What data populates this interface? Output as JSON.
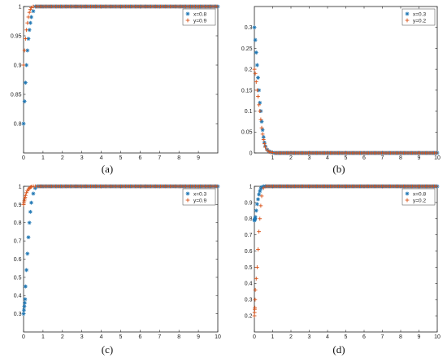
{
  "figure": {
    "captions": [
      "(a)",
      "(b)",
      "(c)",
      "(d)"
    ]
  },
  "colors": {
    "blue": "#1f77b4",
    "orange": "#d95319",
    "axis": "#222222"
  },
  "markers": {
    "blue": "asterisk",
    "orange": "plus"
  },
  "chart_data": [
    {
      "type": "scatter",
      "caption": "(a)",
      "xlim": [
        0,
        10
      ],
      "ylim": [
        0.75,
        1.0
      ],
      "xticks": [
        0,
        1,
        2,
        3,
        4,
        5,
        6,
        7,
        8,
        9
      ],
      "yticks": [
        0.8,
        0.85,
        0.9,
        0.95,
        1
      ],
      "ytick_labels": [
        "0.8",
        "0.85",
        "0.9",
        "0.95",
        "1"
      ],
      "grid": false,
      "legend_position": "top-right",
      "x": [
        0,
        0.05,
        0.1,
        0.15,
        0.2,
        0.25,
        0.3,
        0.35,
        0.4,
        0.5
      ],
      "series": [
        {
          "name": "x=0.8",
          "color": "blue",
          "marker": "asterisk",
          "values": [
            0.8,
            0.838,
            0.87,
            0.9,
            0.925,
            0.945,
            0.96,
            0.972,
            0.982,
            0.992
          ],
          "plateau": 1.0
        },
        {
          "name": "y=0.9",
          "color": "orange",
          "marker": "plus",
          "values": [
            0.9,
            0.925,
            0.945,
            0.96,
            0.972,
            0.982,
            0.99,
            0.995,
            0.998,
            1.0
          ],
          "plateau": 1.0
        }
      ]
    },
    {
      "type": "scatter",
      "caption": "(b)",
      "xlim": [
        0,
        10
      ],
      "ylim": [
        0,
        0.35
      ],
      "xticks": [
        1,
        2,
        3,
        4,
        5,
        6,
        7,
        8,
        9,
        10
      ],
      "yticks": [
        0,
        0.05,
        0.1,
        0.15,
        0.2,
        0.25,
        0.3
      ],
      "ytick_labels": [
        "0",
        "0.05",
        "0.1",
        "0.15",
        "0.2",
        "0.25",
        "0.3"
      ],
      "grid": false,
      "legend_position": "top-right",
      "x": [
        0,
        0.05,
        0.1,
        0.15,
        0.2,
        0.25,
        0.3,
        0.35,
        0.4,
        0.45,
        0.5,
        0.55,
        0.6,
        0.7,
        0.8,
        0.9,
        1.0
      ],
      "series": [
        {
          "name": "x=0.3",
          "color": "blue",
          "marker": "asterisk",
          "values": [
            0.3,
            0.27,
            0.24,
            0.21,
            0.18,
            0.15,
            0.12,
            0.1,
            0.075,
            0.055,
            0.038,
            0.025,
            0.016,
            0.008,
            0.004,
            0.002,
            0.001
          ],
          "plateau": 0.0
        },
        {
          "name": "y=0.2",
          "color": "orange",
          "marker": "plus",
          "values": [
            0.2,
            0.19,
            0.17,
            0.15,
            0.135,
            0.115,
            0.1,
            0.08,
            0.06,
            0.045,
            0.032,
            0.022,
            0.014,
            0.007,
            0.003,
            0.0015,
            0.001
          ],
          "plateau": 0.0
        }
      ]
    },
    {
      "type": "scatter",
      "caption": "(c)",
      "xlim": [
        0,
        10
      ],
      "ylim": [
        0.2,
        1.0
      ],
      "xticks": [
        0,
        1,
        2,
        3,
        4,
        5,
        6,
        7,
        8,
        9,
        10
      ],
      "yticks": [
        0.3,
        0.4,
        0.5,
        0.6,
        0.7,
        0.8,
        0.9,
        1
      ],
      "ytick_labels": [
        "0.3",
        "0.4",
        "0.5",
        "0.6",
        "0.7",
        "0.8",
        "0.9",
        "1"
      ],
      "grid": false,
      "legend_position": "top-right",
      "x": [
        0,
        0.02,
        0.04,
        0.06,
        0.08,
        0.1,
        0.15,
        0.2,
        0.25,
        0.3,
        0.35,
        0.4,
        0.5,
        0.6
      ],
      "series": [
        {
          "name": "x=0.3",
          "color": "blue",
          "marker": "asterisk",
          "values": [
            0.3,
            0.32,
            0.34,
            0.36,
            0.38,
            0.45,
            0.54,
            0.63,
            0.72,
            0.8,
            0.86,
            0.91,
            0.96,
            0.99
          ],
          "plateau": 1.0
        },
        {
          "name": "y=0.9",
          "color": "orange",
          "marker": "plus",
          "values": [
            0.9,
            0.91,
            0.92,
            0.93,
            0.94,
            0.95,
            0.965,
            0.975,
            0.985,
            0.99,
            0.995,
            0.998,
            1.0,
            1.0
          ],
          "plateau": 1.0
        }
      ]
    },
    {
      "type": "scatter",
      "caption": "(d)",
      "xlim": [
        0,
        10
      ],
      "ylim": [
        0.1,
        1.0
      ],
      "xticks": [
        0,
        1,
        2,
        3,
        4,
        5,
        6,
        7,
        8,
        9,
        10
      ],
      "yticks": [
        0.2,
        0.3,
        0.4,
        0.5,
        0.6,
        0.7,
        0.8,
        0.9,
        1
      ],
      "ytick_labels": [
        "0.2",
        "0.3",
        "0.4",
        "0.5",
        "0.6",
        "0.7",
        "0.8",
        "0.9",
        "1"
      ],
      "grid": false,
      "legend_position": "top-right",
      "x": [
        0,
        0.01,
        0.02,
        0.03,
        0.04,
        0.05,
        0.1,
        0.15,
        0.2,
        0.25,
        0.3,
        0.35,
        0.4,
        0.5
      ],
      "series": [
        {
          "name": "x=0.8",
          "color": "blue",
          "marker": "asterisk",
          "values": [
            0.79,
            0.79,
            0.795,
            0.8,
            0.8,
            0.81,
            0.85,
            0.89,
            0.92,
            0.95,
            0.97,
            0.985,
            0.995,
            1.0
          ],
          "plateau": 1.0
        },
        {
          "name": "y=0.2",
          "color": "orange",
          "marker": "plus",
          "values": [
            0.2,
            0.22,
            0.24,
            0.25,
            0.3,
            0.36,
            0.43,
            0.5,
            0.61,
            0.72,
            0.8,
            0.88,
            0.94,
            0.99
          ],
          "plateau": 1.0
        }
      ]
    }
  ]
}
